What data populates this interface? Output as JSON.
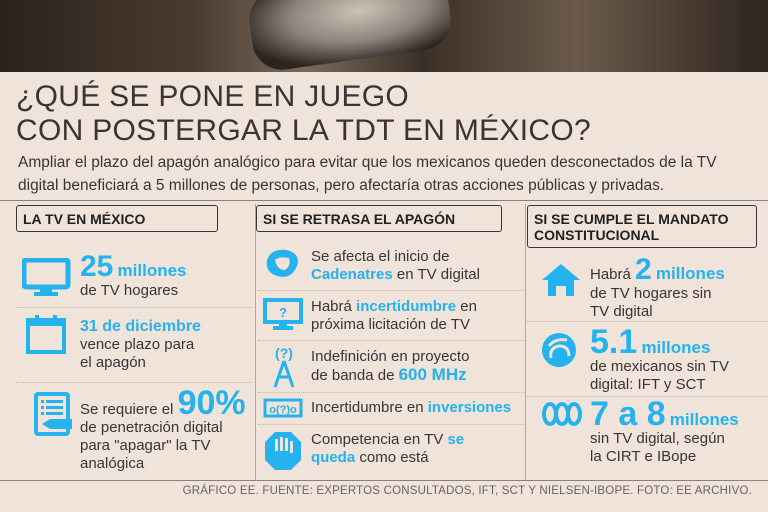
{
  "title": {
    "line1": "¿QUÉ SE PONE EN JUEGO",
    "line2": "CON POSTERGAR LA TDT EN MÉXICO?"
  },
  "subtitle": "Ampliar el plazo del apagón analógico para evitar que los mexicanos queden desconectados de la TV digital beneficiará a 5 millones de personas, pero afectaría otras acciones públicas y privadas.",
  "col1": {
    "header": "LA TV EN MÉXICO",
    "i1": {
      "big": "25",
      "unit": "millones",
      "text": "de TV hogares"
    },
    "i2": {
      "big": "31 de diciembre",
      "text1": "vence plazo para",
      "text2": "el apagón"
    },
    "i3": {
      "pre": "Se requiere el",
      "big": "90%",
      "text1": "de penetración digital",
      "text2": "para \"apagar\" la TV",
      "text3": "analógica"
    }
  },
  "col2": {
    "header": "SI SE RETRASA EL APAGÓN",
    "i1": {
      "t1": "Se afecta el inicio de",
      "b": "Cadenatres",
      "t2": " en TV digital"
    },
    "i2": {
      "t1": "Habrá ",
      "b": "incertidumbre",
      "t2": " en",
      "t3": "próxima licitación de TV"
    },
    "i3": {
      "t1": "Indefinición en proyecto",
      "t2": "de banda de ",
      "b": "600 MHz"
    },
    "i4": {
      "t1": "Incertidumbre en ",
      "b": "inversiones"
    },
    "i5": {
      "t1": "Competencia en TV ",
      "b1": "se",
      "b2": "queda",
      "t2": " como está"
    }
  },
  "col3": {
    "header": "SI SE CUMPLE EL MANDATO CONSTITUCIONAL",
    "i1": {
      "pre": "Habrá ",
      "big": "2",
      "unit": "millones",
      "t1": "de TV hogares sin",
      "t2": "TV digital"
    },
    "i2": {
      "big": "5.1",
      "unit": "millones",
      "t1": "de mexicanos sin TV",
      "t2": "digital: IFT y SCT"
    },
    "i3": {
      "big": "7 a 8",
      "unit": "millones",
      "t1": "sin TV digital, según",
      "t2": "la CIRT e IBope"
    }
  },
  "footer": "GRÁFICO EE. FUENTE: EXPERTOS CONSULTADOS, IFT, SCT Y NIELSEN-IBOPE. FOTO: EE ARCHIVO.",
  "colors": {
    "accent": "#25b3ef",
    "background": "#efe3da",
    "text": "#3a3434"
  }
}
